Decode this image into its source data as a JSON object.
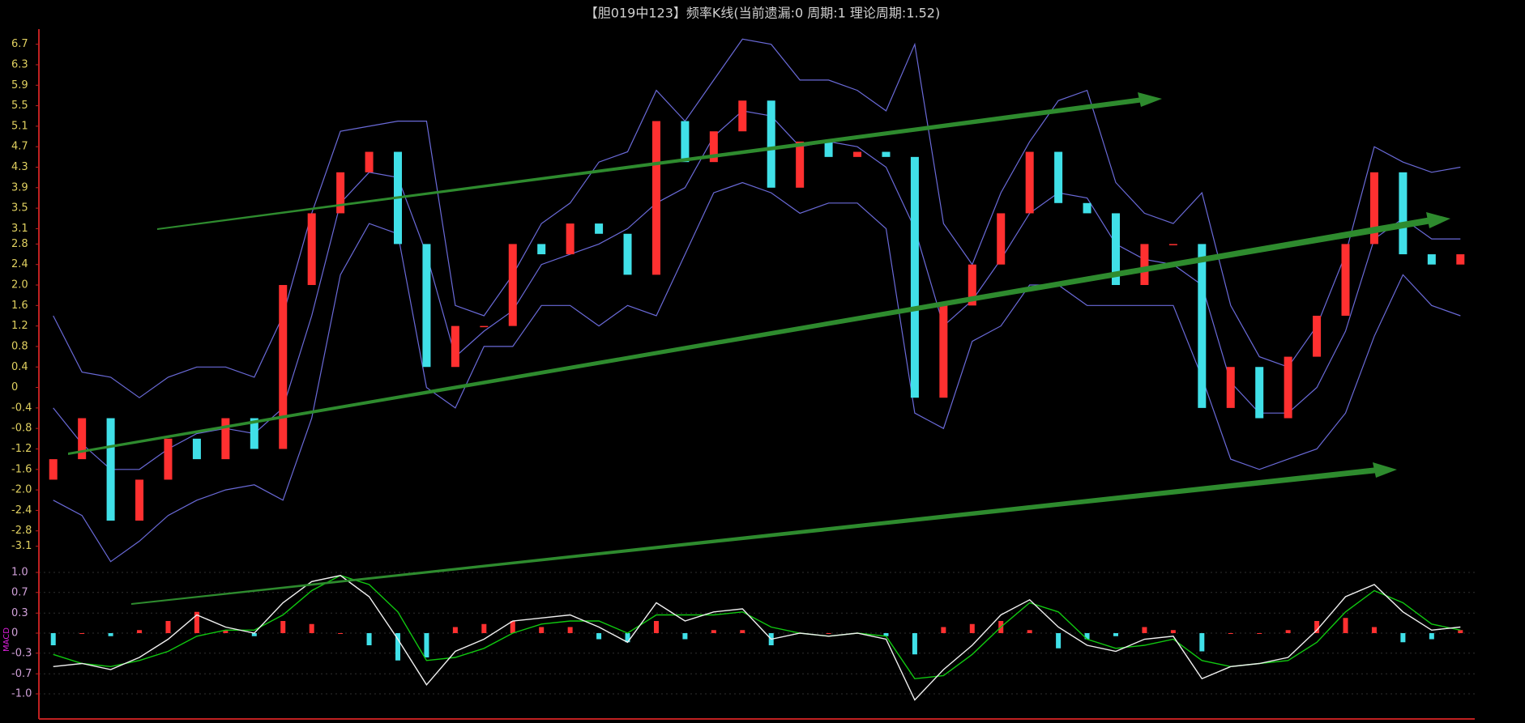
{
  "chart_data": [
    {
      "type": "candlestick",
      "title": "【胆019中123】频率K线(当前遗漏:0 周期:1 理论周期:1.52)",
      "open": [
        -1.8,
        -1.4,
        -0.6,
        -2.6,
        -1.8,
        -1.0,
        -1.4,
        -0.6,
        -1.2,
        2.0,
        3.4,
        4.2,
        4.6,
        2.8,
        0.4,
        1.2,
        1.2,
        2.8,
        2.6,
        3.2,
        3.0,
        2.2,
        5.2,
        4.4,
        5.0,
        5.6,
        3.9,
        4.8,
        4.5,
        4.6,
        4.5,
        -0.2,
        1.6,
        2.4,
        3.4,
        4.6,
        3.6,
        3.4,
        2.0,
        2.8,
        2.8,
        -0.4,
        0.4,
        -0.6,
        0.6,
        1.4,
        2.8,
        4.2,
        2.6,
        2.4
      ],
      "close": [
        -1.4,
        -0.6,
        -2.6,
        -1.8,
        -1.0,
        -1.4,
        -0.6,
        -1.2,
        2.0,
        3.4,
        4.2,
        4.6,
        2.8,
        0.4,
        1.2,
        1.2,
        2.8,
        2.6,
        3.2,
        3.0,
        2.2,
        5.2,
        4.4,
        5.0,
        5.6,
        3.9,
        4.8,
        4.5,
        4.6,
        4.5,
        -0.2,
        1.6,
        2.4,
        3.4,
        4.6,
        3.6,
        3.4,
        2.0,
        2.8,
        2.8,
        -0.4,
        0.4,
        -0.6,
        0.6,
        1.4,
        2.8,
        4.2,
        2.6,
        2.4,
        2.6
      ],
      "upper": [
        1.4,
        0.3,
        0.2,
        -0.2,
        0.2,
        0.4,
        0.4,
        0.2,
        1.4,
        3.4,
        5.0,
        5.1,
        5.2,
        5.2,
        1.6,
        1.4,
        2.2,
        3.2,
        3.6,
        4.4,
        4.6,
        5.8,
        5.2,
        6.0,
        6.8,
        6.7,
        6.0,
        6.0,
        5.8,
        5.4,
        6.7,
        3.2,
        2.4,
        3.8,
        4.8,
        5.6,
        5.8,
        4.0,
        3.4,
        3.2,
        3.8,
        1.6,
        0.6,
        0.4,
        1.2,
        2.6,
        4.7,
        4.4,
        4.2,
        4.3
      ],
      "middle": [
        -0.4,
        -1.1,
        -1.6,
        -1.6,
        -1.2,
        -0.9,
        -0.8,
        -0.9,
        -0.4,
        1.4,
        3.6,
        4.2,
        4.1,
        2.6,
        0.6,
        1.1,
        1.5,
        2.4,
        2.6,
        2.8,
        3.1,
        3.6,
        3.9,
        4.9,
        5.4,
        5.3,
        4.7,
        4.8,
        4.7,
        4.3,
        3.1,
        1.2,
        1.7,
        2.5,
        3.4,
        3.8,
        3.7,
        2.8,
        2.5,
        2.4,
        2.0,
        0.1,
        -0.5,
        -0.5,
        0.0,
        1.1,
        2.9,
        3.3,
        2.9,
        2.9
      ],
      "lower": [
        -2.2,
        -2.5,
        -3.4,
        -3.0,
        -2.5,
        -2.2,
        -2.0,
        -1.9,
        -2.2,
        -0.6,
        2.2,
        3.2,
        3.0,
        0.0,
        -0.4,
        0.8,
        0.8,
        1.6,
        1.6,
        1.2,
        1.6,
        1.4,
        2.6,
        3.8,
        4.0,
        3.8,
        3.4,
        3.6,
        3.6,
        3.1,
        -0.5,
        -0.8,
        0.9,
        1.2,
        2.0,
        2.0,
        1.6,
        1.6,
        1.6,
        1.6,
        0.2,
        -1.4,
        -1.6,
        -1.4,
        -1.2,
        -0.5,
        1.0,
        2.2,
        1.6,
        1.4
      ],
      "color_up": "#ff3030",
      "color_down": "#40e0e8",
      "band_color": "#6a6ad8",
      "ylim": [
        -3.5,
        6.9
      ],
      "yticks": [
        6.7,
        6.3,
        5.9,
        5.5,
        5.1,
        4.7,
        4.3,
        3.9,
        3.5,
        3.1,
        2.8,
        2.4,
        {
          "value": 2,
          "label": "2.0"
        },
        1.6,
        1.2,
        0.8,
        0.4,
        0,
        -0.4,
        -0.8,
        -1.2,
        -1.6,
        {
          "value": -2,
          "label": "-2.0"
        },
        -2.4,
        -2.8,
        -3.1
      ]
    },
    {
      "type": "macd",
      "label": "MACD",
      "dif": [
        -0.55,
        -0.5,
        -0.6,
        -0.4,
        -0.1,
        0.3,
        0.1,
        0.0,
        0.5,
        0.85,
        0.95,
        0.6,
        -0.1,
        -0.85,
        -0.3,
        -0.1,
        0.2,
        0.25,
        0.3,
        0.1,
        -0.15,
        0.5,
        0.2,
        0.35,
        0.4,
        -0.1,
        0.0,
        -0.05,
        0.0,
        -0.1,
        -1.1,
        -0.6,
        -0.2,
        0.3,
        0.55,
        0.1,
        -0.2,
        -0.3,
        -0.1,
        -0.05,
        -0.75,
        -0.55,
        -0.5,
        -0.4,
        0.05,
        0.6,
        0.8,
        0.35,
        0.05,
        0.1
      ],
      "dea": [
        -0.35,
        -0.5,
        -0.55,
        -0.45,
        -0.3,
        -0.05,
        0.05,
        0.05,
        0.3,
        0.7,
        0.95,
        0.8,
        0.35,
        -0.45,
        -0.4,
        -0.25,
        0.0,
        0.15,
        0.2,
        0.2,
        0.0,
        0.3,
        0.3,
        0.3,
        0.35,
        0.1,
        0.0,
        -0.05,
        0.0,
        -0.05,
        -0.75,
        -0.7,
        -0.35,
        0.1,
        0.5,
        0.35,
        -0.1,
        -0.25,
        -0.2,
        -0.1,
        -0.45,
        -0.55,
        -0.5,
        -0.45,
        -0.15,
        0.35,
        0.7,
        0.5,
        0.15,
        0.05
      ],
      "hist": [
        -0.2,
        0,
        -0.05,
        0.05,
        0.2,
        0.35,
        0.05,
        -0.05,
        0.2,
        0.15,
        0,
        -0.2,
        -0.45,
        -0.4,
        0.1,
        0.15,
        0.2,
        0.1,
        0.1,
        -0.1,
        -0.15,
        0.2,
        -0.1,
        0.05,
        0.05,
        -0.2,
        0,
        0,
        0,
        -0.05,
        -0.35,
        0.1,
        0.15,
        0.2,
        0.05,
        -0.25,
        -0.1,
        -0.05,
        0.1,
        0.05,
        -0.3,
        0,
        0,
        0.05,
        0.2,
        0.25,
        0.1,
        -0.15,
        -0.1,
        0.05
      ],
      "dif_color": "#f0f0f0",
      "dea_color": "#10c810",
      "color_up": "#ff3030",
      "color_down": "#40e0e8",
      "ylim": [
        -1.4,
        1.0
      ],
      "yticks": [
        {
          "value": 1,
          "label": "1.0"
        },
        {
          "value": 0.67,
          "label": "0.7"
        },
        {
          "value": 0.33,
          "label": "0.3"
        },
        0,
        {
          "value": -0.33,
          "label": "-0.3"
        },
        {
          "value": -0.67,
          "label": "-0.7"
        },
        {
          "value": -1,
          "label": "-1.0"
        }
      ]
    }
  ]
}
